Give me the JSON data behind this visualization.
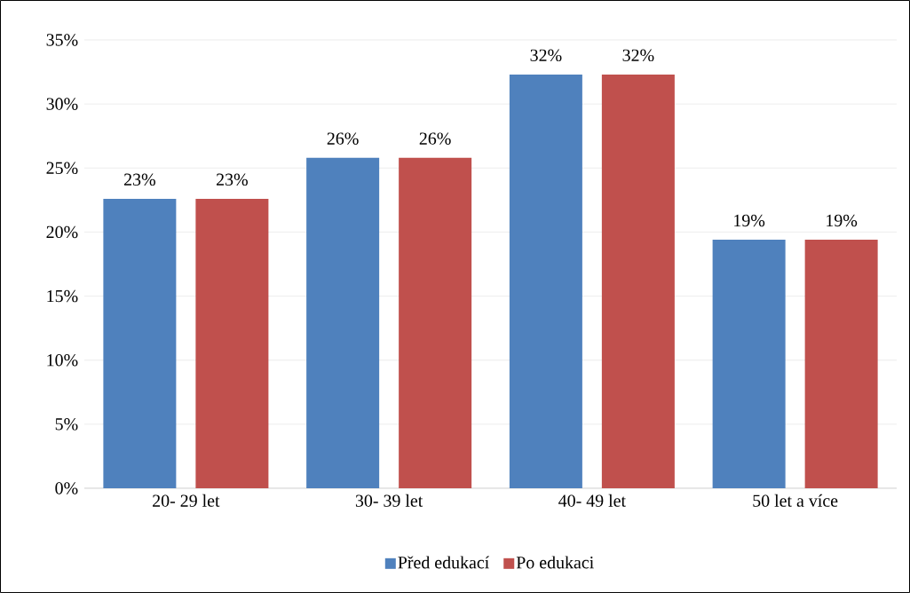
{
  "chart_data": {
    "type": "bar",
    "categories": [
      "20- 29 let",
      "30- 39 let",
      "40- 49 let",
      "50 let a více"
    ],
    "series": [
      {
        "name": "Před edukací",
        "color": "#4f81bd",
        "values": [
          22.6,
          25.8,
          32.3,
          19.4
        ],
        "value_labels": [
          "23%",
          "26%",
          "32%",
          "19%"
        ]
      },
      {
        "name": "Po edukaci",
        "color": "#c0504d",
        "values": [
          22.6,
          25.8,
          32.3,
          19.4
        ],
        "value_labels": [
          "23%",
          "26%",
          "32%",
          "19%"
        ]
      }
    ],
    "ylim": [
      0,
      35
    ],
    "yticks": [
      {
        "value": 0,
        "label": "0%"
      },
      {
        "value": 5,
        "label": "5%"
      },
      {
        "value": 10,
        "label": "10%"
      },
      {
        "value": 15,
        "label": "15%"
      },
      {
        "value": 20,
        "label": "20%"
      },
      {
        "value": 25,
        "label": "25%"
      },
      {
        "value": 30,
        "label": "30%"
      },
      {
        "value": 35,
        "label": "35%"
      }
    ],
    "grid": "y",
    "legend": "bottom"
  }
}
